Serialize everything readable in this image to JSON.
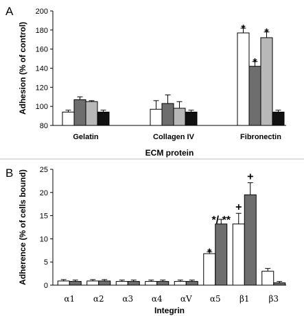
{
  "chart_data": [
    {
      "type": "bar",
      "panel_label": "A",
      "categories": [
        "Gelatin",
        "Collagen IV",
        "Fibronectin"
      ],
      "series": [
        {
          "values": [
            94,
            97,
            177
          ],
          "errors": [
            2,
            9,
            5
          ],
          "color": "#ffffff"
        },
        {
          "values": [
            107,
            103,
            142
          ],
          "errors": [
            3,
            9,
            5
          ],
          "color": "#6e6e6e"
        },
        {
          "values": [
            105,
            98,
            172
          ],
          "errors": [
            1,
            7,
            6
          ],
          "color": "#b8b8b8"
        },
        {
          "values": [
            94,
            94,
            94
          ],
          "errors": [
            2,
            2,
            2
          ],
          "color": "#111111"
        }
      ],
      "annotations": [
        {
          "category": 2,
          "series": 0,
          "text": "*"
        },
        {
          "category": 2,
          "series": 1,
          "text": "*"
        },
        {
          "category": 2,
          "series": 2,
          "text": "*"
        }
      ],
      "xlabel": "ECM protein",
      "ylabel": "Adhesion (% of control)",
      "ylim": [
        80,
        200
      ],
      "yticks": [
        "80",
        "100",
        "120",
        "140",
        "160",
        "180",
        "200"
      ],
      "grid": false
    },
    {
      "type": "bar",
      "panel_label": "B",
      "categories": [
        "α1",
        "α2",
        "α3",
        "α4",
        "αV",
        "α5",
        "β1",
        "β3"
      ],
      "series": [
        {
          "values": [
            0.9,
            0.9,
            0.8,
            0.8,
            0.8,
            6.8,
            13.2,
            3.0
          ],
          "errors": [
            0.3,
            0.3,
            0.3,
            0.3,
            0.3,
            0.4,
            2.3,
            0.6
          ],
          "color": "#ffffff"
        },
        {
          "values": [
            0.8,
            0.9,
            0.8,
            0.8,
            0.8,
            13.2,
            19.5,
            0.5
          ],
          "errors": [
            0.3,
            0.3,
            0.3,
            0.3,
            0.3,
            1.0,
            2.6,
            0.3
          ],
          "color": "#6e6e6e"
        }
      ],
      "annotations": [
        {
          "category": 5,
          "series": 0,
          "text": "*"
        },
        {
          "category": 5,
          "series": 1,
          "text": "*/ **"
        },
        {
          "category": 6,
          "series": 0,
          "text": "+"
        },
        {
          "category": 6,
          "series": 1,
          "text": "+"
        }
      ],
      "xlabel": "Integrin",
      "ylabel": "Adherence (% of cells bound)",
      "ylim": [
        0,
        25
      ],
      "yticks": [
        "0",
        "5",
        "10",
        "15",
        "20",
        "25"
      ],
      "grid": false
    }
  ]
}
